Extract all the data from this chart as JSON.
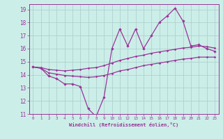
{
  "xlabel": "Windchill (Refroidissement éolien,°C)",
  "bg_color": "#cceee8",
  "grid_color": "#aacccc",
  "line_color": "#993399",
  "xlim": [
    -0.5,
    23.5
  ],
  "ylim": [
    11,
    19.4
  ],
  "xticks": [
    0,
    1,
    2,
    3,
    4,
    5,
    6,
    7,
    8,
    9,
    10,
    11,
    12,
    13,
    14,
    15,
    16,
    17,
    18,
    19,
    20,
    21,
    22,
    23
  ],
  "yticks": [
    11,
    12,
    13,
    14,
    15,
    16,
    17,
    18,
    19
  ],
  "main_line_x": [
    0,
    1,
    2,
    3,
    4,
    5,
    6,
    7,
    8,
    9,
    10,
    11,
    12,
    13,
    14,
    15,
    16,
    17,
    18,
    19,
    20,
    21,
    22,
    23
  ],
  "main_line_y": [
    14.6,
    14.5,
    13.9,
    13.7,
    13.3,
    13.3,
    13.1,
    11.4,
    10.8,
    12.3,
    16.0,
    17.5,
    16.2,
    17.5,
    16.0,
    17.0,
    18.0,
    18.5,
    19.1,
    18.1,
    16.2,
    16.3,
    16.0,
    15.8
  ],
  "upper_line_x": [
    0,
    1,
    2,
    3,
    4,
    5,
    6,
    7,
    8,
    9,
    10,
    11,
    12,
    13,
    14,
    15,
    16,
    17,
    18,
    19,
    20,
    21,
    22,
    23
  ],
  "upper_line_y": [
    14.6,
    14.55,
    14.4,
    14.35,
    14.3,
    14.35,
    14.4,
    14.5,
    14.55,
    14.7,
    14.9,
    15.1,
    15.25,
    15.4,
    15.5,
    15.65,
    15.75,
    15.85,
    15.95,
    16.05,
    16.1,
    16.2,
    16.15,
    16.05
  ],
  "lower_line_x": [
    0,
    1,
    2,
    3,
    4,
    5,
    6,
    7,
    8,
    9,
    10,
    11,
    12,
    13,
    14,
    15,
    16,
    17,
    18,
    19,
    20,
    21,
    22,
    23
  ],
  "lower_line_y": [
    14.6,
    14.5,
    14.15,
    14.05,
    13.95,
    13.9,
    13.85,
    13.8,
    13.85,
    13.95,
    14.1,
    14.3,
    14.4,
    14.55,
    14.7,
    14.8,
    14.9,
    15.0,
    15.1,
    15.2,
    15.25,
    15.35,
    15.35,
    15.35
  ]
}
